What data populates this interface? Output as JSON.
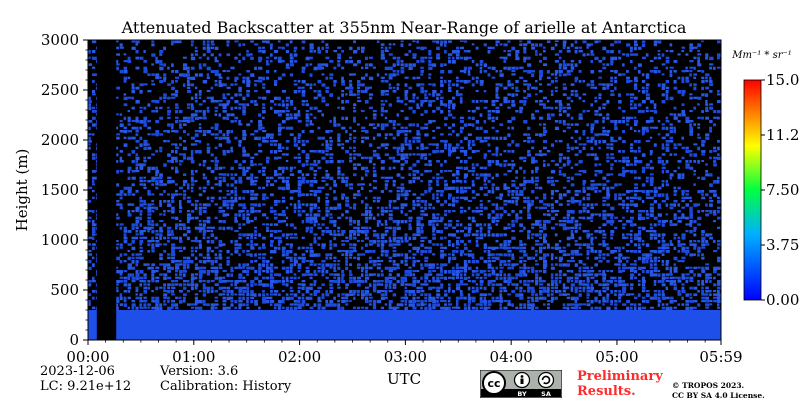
{
  "chart_data": {
    "type": "heatmap",
    "title": "Attenuated Backscatter at 355nm Near-Range of arielle at Antarctica",
    "xlabel": "UTC",
    "ylabel": "Height (m)",
    "x_ticks": [
      "00:00",
      "01:00",
      "02:00",
      "03:00",
      "04:00",
      "05:00",
      "05:59"
    ],
    "xlim": [
      "00:00",
      "05:59"
    ],
    "y_ticks": [
      0,
      500,
      1000,
      1500,
      2000,
      2500,
      3000
    ],
    "ylim": [
      0,
      3000
    ],
    "colorbar": {
      "unit_label": "Mm⁻¹ * sr⁻¹",
      "ticks": [
        "0.00",
        "3.75",
        "7.50",
        "11.25",
        "15.00"
      ],
      "range": [
        0,
        15
      ],
      "colormap": "jet-like (blue to red)"
    },
    "no_data_interval": [
      "00:05",
      "00:16"
    ],
    "fields": [
      {
        "name": "near-surface layer",
        "height_top": 300,
        "value_approx": 0.5
      },
      {
        "name": "noisy signal above",
        "height_range": [
          300,
          3000
        ],
        "value_approx": 0.3
      }
    ],
    "colors": {
      "blue": "#1e4fe8",
      "no_data": "#000000"
    }
  },
  "footer": {
    "date": "2023-12-06",
    "lc": "LC: 9.21e+12",
    "version": "Version: 3.6",
    "calibration": "Calibration: History",
    "license_badge": "cc-by-sa-badge",
    "badge_by": "BY",
    "badge_sa": "SA",
    "preliminary_line1": "Preliminary",
    "preliminary_line2": "Results.",
    "copyright_line1": "© TROPOS 2023.",
    "copyright_line2": "CC BY SA 4.0 License."
  }
}
